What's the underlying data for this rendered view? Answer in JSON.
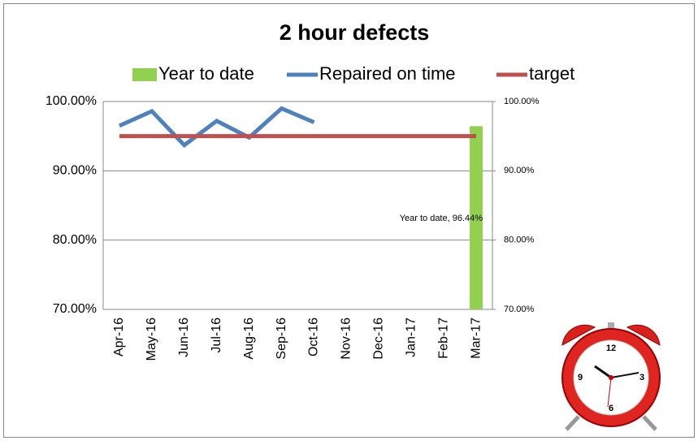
{
  "chart_data": {
    "type": "combo",
    "title": "2 hour defects",
    "categories": [
      "Apr-16",
      "May-16",
      "Jun-16",
      "Jul-16",
      "Aug-16",
      "Sep-16",
      "Oct-16",
      "Nov-16",
      "Dec-16",
      "Jan-17",
      "Feb-17",
      "Mar-17"
    ],
    "series": [
      {
        "name": "Year to date",
        "type": "bar",
        "axis": "y2",
        "color": "#92d050",
        "values": [
          null,
          null,
          null,
          null,
          null,
          null,
          null,
          null,
          null,
          null,
          null,
          96.44
        ],
        "value_labels": [
          null,
          null,
          null,
          null,
          null,
          null,
          null,
          null,
          null,
          null,
          null,
          "Year to date, 96.44%"
        ]
      },
      {
        "name": "Repaired on time",
        "type": "line",
        "color": "#4f81bd",
        "values": [
          96.5,
          98.6,
          93.7,
          97.2,
          94.8,
          99.0,
          97.0,
          null,
          null,
          null,
          null,
          null
        ]
      },
      {
        "name": "target",
        "type": "line",
        "color": "#c0504d",
        "values": [
          95,
          95,
          95,
          95,
          95,
          95,
          95,
          95,
          95,
          95,
          95,
          95
        ]
      }
    ],
    "ylim": [
      70,
      100
    ],
    "yticks": [
      {
        "value": 70,
        "label": "70.00%"
      },
      {
        "value": 80,
        "label": "80.00%"
      },
      {
        "value": 90,
        "label": "90.00%"
      },
      {
        "value": 100,
        "label": "100.00%"
      }
    ],
    "y2lim": [
      70,
      100
    ],
    "y2ticks": [
      {
        "value": 70,
        "label": "70.00%"
      },
      {
        "value": 80,
        "label": "80.00%"
      },
      {
        "value": 90,
        "label": "90.00%"
      },
      {
        "value": 100,
        "label": "100.00%"
      }
    ],
    "grid": true,
    "legend": "top"
  }
}
